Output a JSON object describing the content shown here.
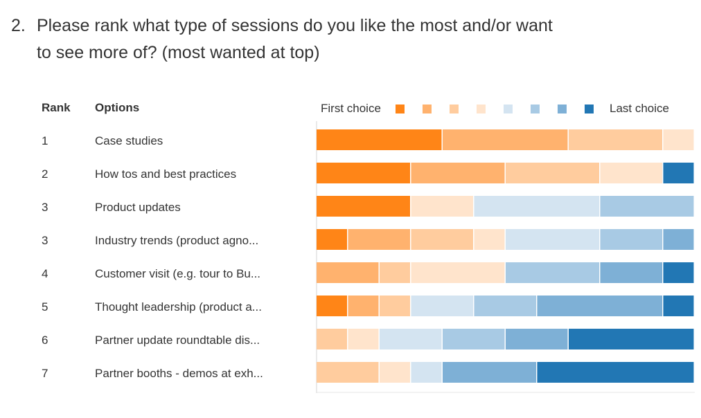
{
  "question": {
    "number": "2.",
    "text": "Please rank what type of sessions do you like the most and/or want to see more of? (most wanted at top)"
  },
  "table": {
    "rank_header": "Rank",
    "options_header": "Options"
  },
  "legend": {
    "first_label": "First choice",
    "last_label": "Last choice",
    "colors": [
      "#ff8517",
      "#ffb26e",
      "#ffcc9e",
      "#ffe4cc",
      "#d4e4f1",
      "#a8cae4",
      "#7eb0d6",
      "#2277b4"
    ]
  },
  "chart_data": {
    "type": "bar",
    "orientation": "horizontal",
    "stacked": true,
    "xlim": [
      0,
      12
    ],
    "color_scale": [
      "First choice",
      "Last choice"
    ],
    "rows": [
      {
        "rank": "1",
        "option": "Case studies",
        "segments": [
          4,
          4,
          3,
          1,
          0,
          0,
          0,
          0
        ]
      },
      {
        "rank": "2",
        "option": "How tos and best practices",
        "segments": [
          3,
          3,
          3,
          2,
          0,
          0,
          0,
          1
        ]
      },
      {
        "rank": "3",
        "option": "Product updates",
        "segments": [
          3,
          0,
          0,
          2,
          4,
          3,
          0,
          0
        ]
      },
      {
        "rank": "3",
        "option": "Industry trends (product agno...",
        "segments": [
          1,
          2,
          2,
          1,
          3,
          2,
          1,
          0
        ]
      },
      {
        "rank": "4",
        "option": "Customer visit (e.g. tour to Bu...",
        "segments": [
          0,
          2,
          1,
          3,
          0,
          3,
          2,
          1
        ]
      },
      {
        "rank": "5",
        "option": "Thought leadership (product a...",
        "segments": [
          1,
          1,
          1,
          0,
          2,
          2,
          4,
          1
        ]
      },
      {
        "rank": "6",
        "option": "Partner update roundtable dis...",
        "segments": [
          0,
          0,
          1,
          1,
          2,
          2,
          2,
          4
        ]
      },
      {
        "rank": "7",
        "option": "Partner booths - demos at exh...",
        "segments": [
          0,
          0,
          2,
          1,
          1,
          0,
          3,
          5
        ]
      }
    ]
  }
}
